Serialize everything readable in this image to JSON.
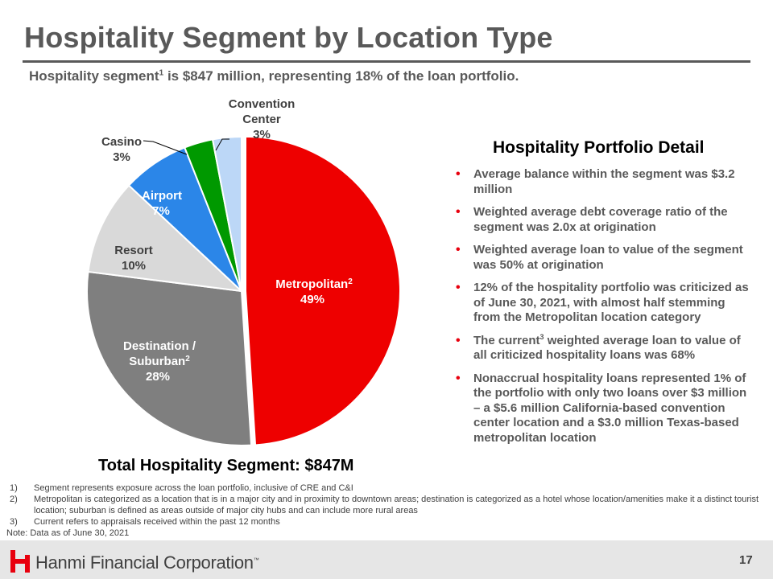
{
  "page": {
    "title": "Hospitality Segment by Location Type",
    "subtitle_pre": "Hospitality segment",
    "subtitle_sup": "1",
    "subtitle_post": " is $847 million, representing 18% of the loan portfolio.",
    "total_label": "Total Hospitality Segment: $847M",
    "page_number": "17"
  },
  "chart_data": {
    "type": "pie",
    "title": "Total Hospitality Segment: $847M",
    "slices": [
      {
        "label": "Metropolitan",
        "sup": "2",
        "value": 49,
        "value_label": "49%",
        "color": "#ee0000"
      },
      {
        "label": "Destination / Suburban",
        "sup": "2",
        "value": 28,
        "value_label": "28%",
        "color": "#7f7f7f"
      },
      {
        "label": "Resort",
        "value": 10,
        "value_label": "10%",
        "color": "#d9d9d9"
      },
      {
        "label": "Airport",
        "value": 7,
        "value_label": "7%",
        "color": "#2b86e8"
      },
      {
        "label": "Casino",
        "value": 3,
        "value_label": "3%",
        "color": "#009900"
      },
      {
        "label": "Convention Center",
        "value": 3,
        "value_label": "3%",
        "color": "#bcd7f7"
      }
    ],
    "labels": {
      "metropolitan": {
        "line1": "Metropolitan",
        "sup": "2",
        "value": "49%"
      },
      "destination": {
        "line1": "Destination /",
        "line2": "Suburban",
        "sup": "2",
        "value": "28%"
      },
      "resort": {
        "line1": "Resort",
        "value": "10%"
      },
      "airport": {
        "line1": "Airport",
        "value": "7%"
      },
      "casino": {
        "line1": "Casino",
        "value": "3%"
      },
      "convention": {
        "line1": "Convention",
        "line2": "Center",
        "value": "3%"
      }
    }
  },
  "detail": {
    "title": "Hospitality Portfolio Detail",
    "bullets": [
      {
        "text": "Average balance within the segment was $3.2 million"
      },
      {
        "text": "Weighted average debt coverage ratio of the segment was 2.0x at origination"
      },
      {
        "text": "Weighted average loan to value of the segment was 50% at origination"
      },
      {
        "text": "12% of the hospitality portfolio was criticized as of June 30, 2021, with almost half stemming from the Metropolitan location category"
      },
      {
        "pre": "The current",
        "sup": "3",
        "post": " weighted average loan to value of all criticized hospitality loans was 68%"
      },
      {
        "text": "Nonaccrual hospitality loans represented 1% of the portfolio with only two loans over $3 million – a $5.6 million California-based convention center location and a $3.0 million Texas-based metropolitan location"
      }
    ]
  },
  "footnotes": [
    {
      "num": "1)",
      "text": "Segment represents exposure across the loan portfolio, inclusive of CRE and C&I"
    },
    {
      "num": "2)",
      "text": "Metropolitan is categorized as a location that is in a major city and in proximity to downtown areas; destination is categorized as a hotel whose location/amenities make it a distinct tourist location; suburban is defined as areas outside of major city hubs and can include more rural areas"
    },
    {
      "num": "3)",
      "text": "Current refers to appraisals received within the past 12 months"
    }
  ],
  "note": "Note: Data as of June 30, 2021",
  "footer": {
    "company": "Hanmi Financial Corporation",
    "tm": "™"
  },
  "colors": {
    "accent": "#e8000e",
    "text": "#595959",
    "footer_bg": "#e6e6e6"
  },
  "icons": {
    "logo": "hanmi-logo-icon"
  }
}
